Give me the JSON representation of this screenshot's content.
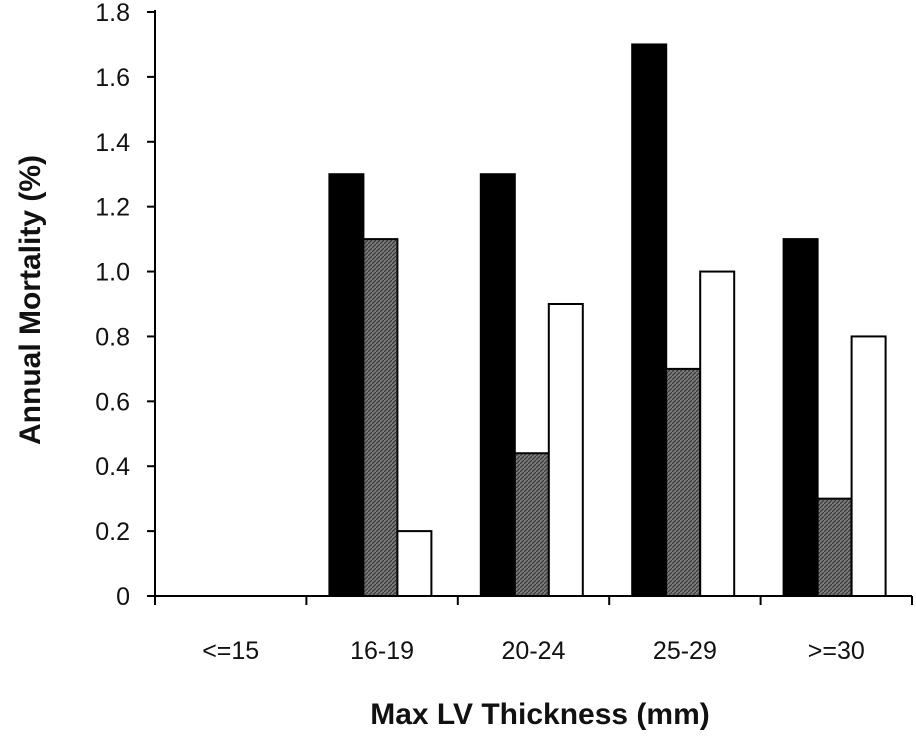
{
  "chart_data": {
    "type": "bar",
    "title": "",
    "xlabel": "Max LV Thickness  (mm)",
    "ylabel": "Annual Mortality (%)",
    "categories": [
      "<=15",
      "16-19",
      "20-24",
      "25-29",
      ">=30"
    ],
    "ylim": [
      0,
      1.8
    ],
    "yticks": [
      "0",
      "0.2",
      "0.4",
      "0.6",
      "0.8",
      "1.0",
      "1.2",
      "1.4",
      "1.6",
      "1.8"
    ],
    "grid": false,
    "legend": "none",
    "series": [
      {
        "values": [
          0,
          1.3,
          1.3,
          1.7,
          1.1
        ],
        "fill": "#000000"
      },
      {
        "values": [
          0,
          1.1,
          0.44,
          0.7,
          0.3
        ],
        "fill": "#6e6e6e"
      },
      {
        "values": [
          0,
          0.2,
          0.9,
          1.0,
          0.8
        ],
        "fill": "#ffffff"
      }
    ]
  }
}
